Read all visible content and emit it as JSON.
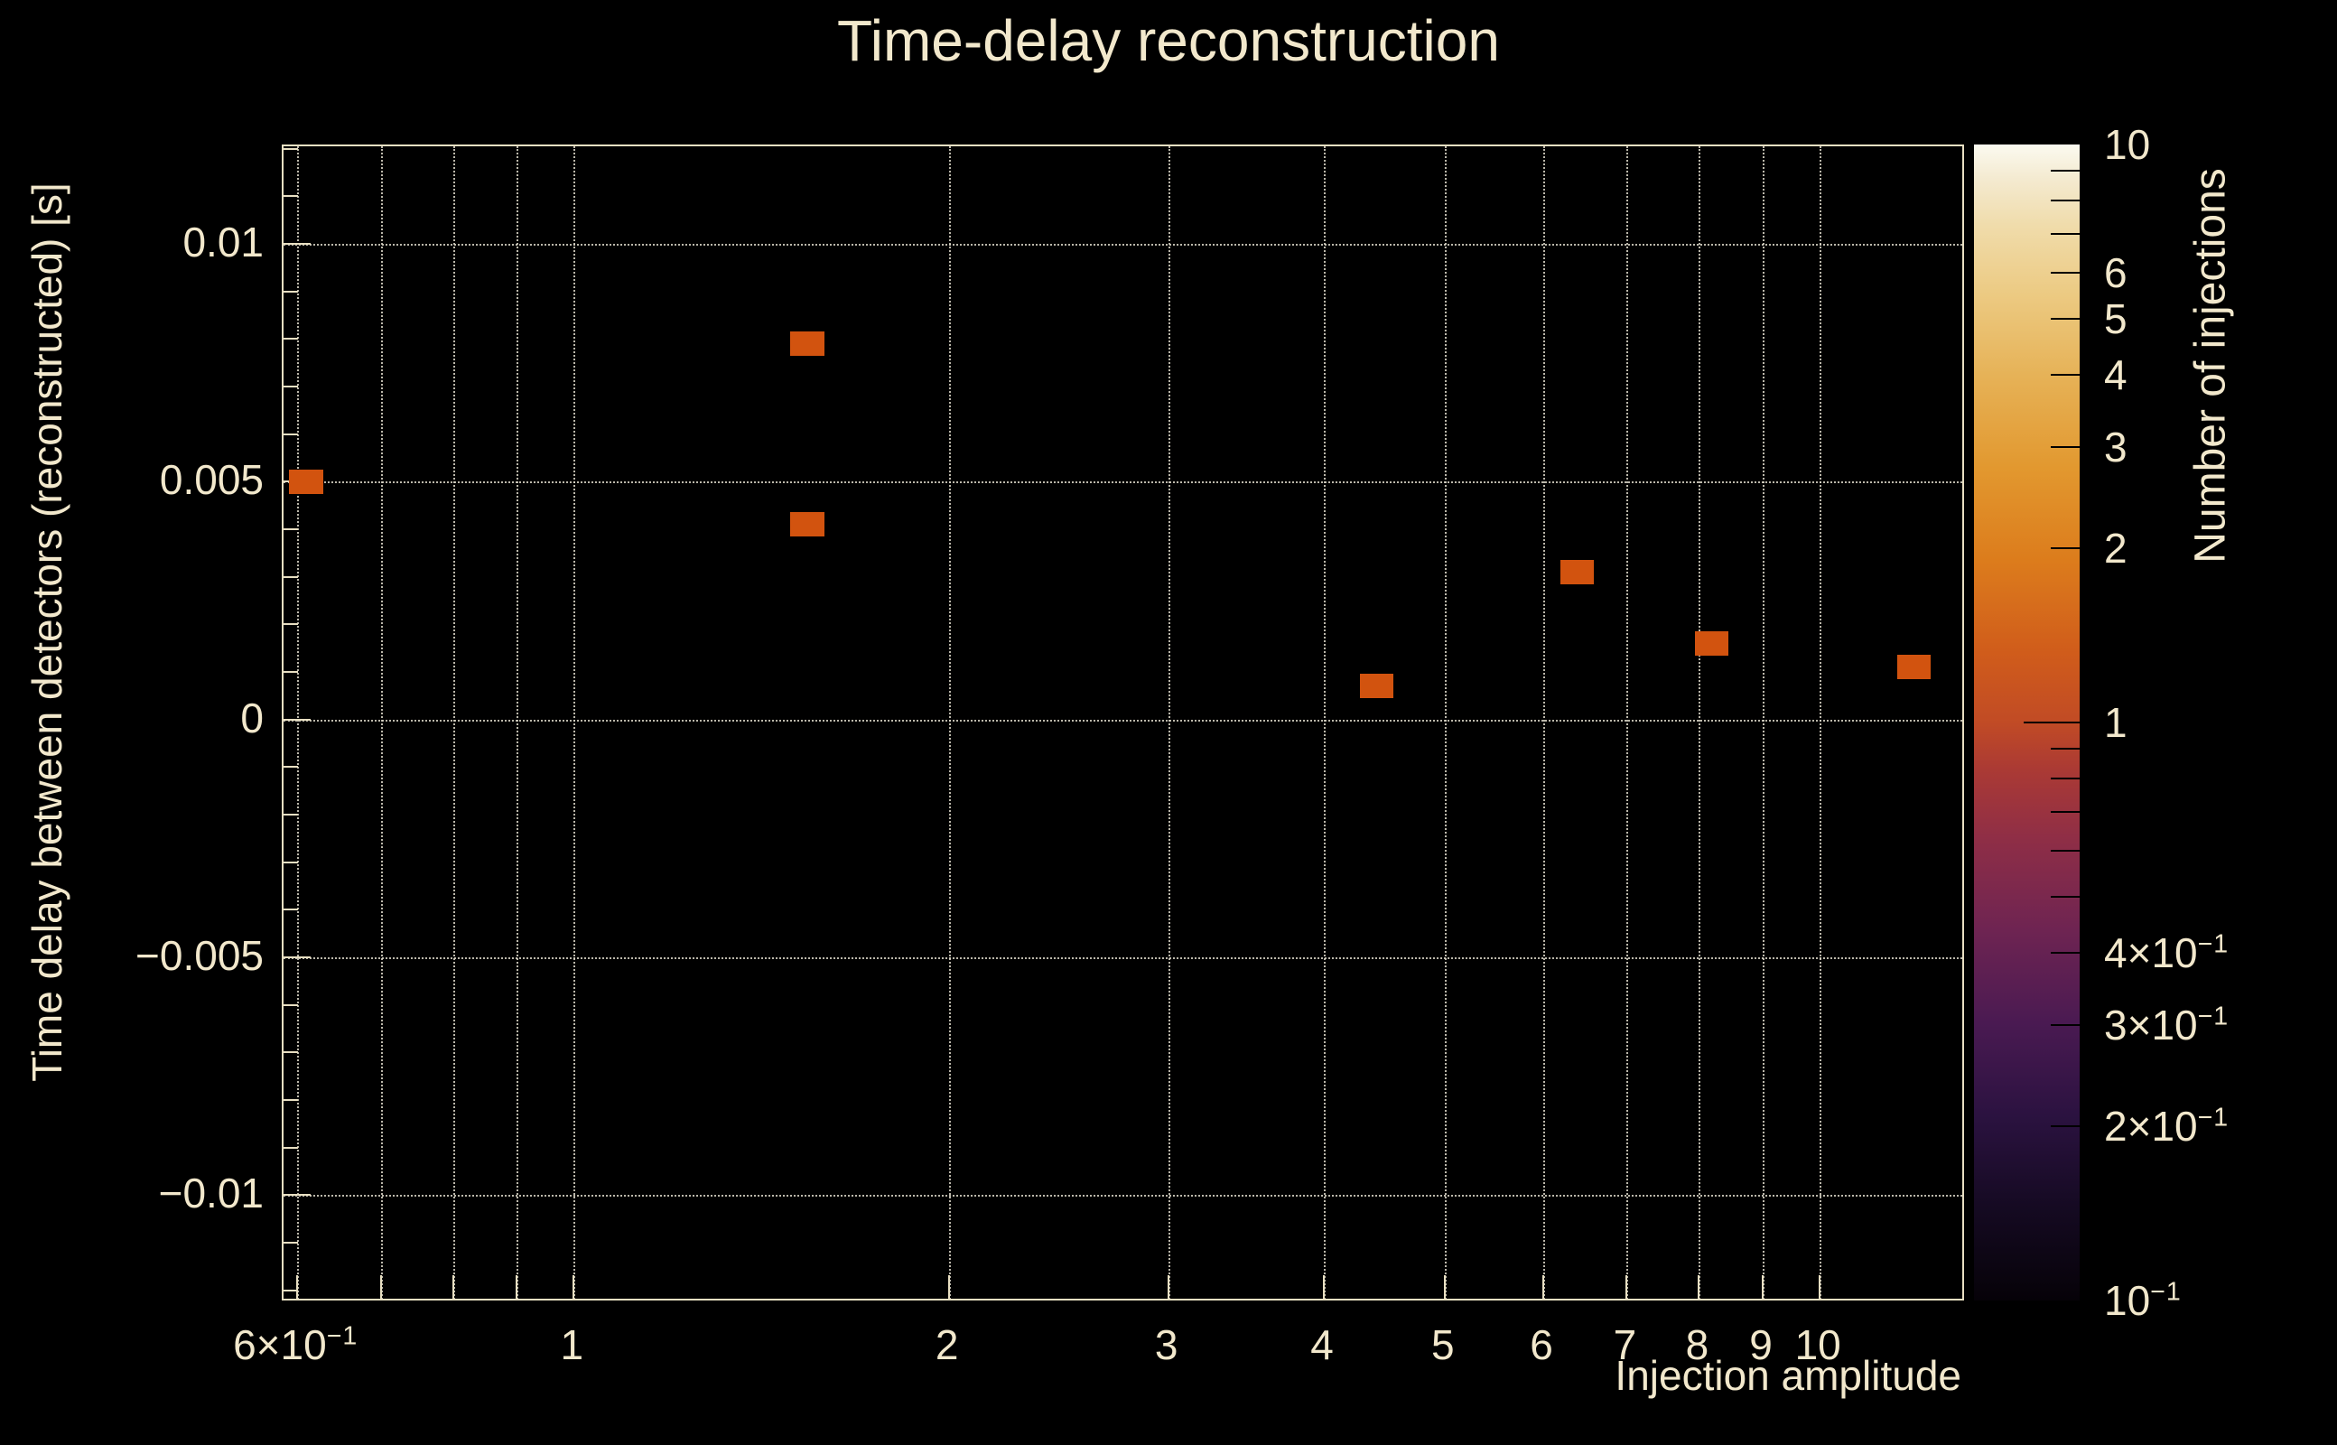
{
  "title": "Time-delay reconstruction",
  "colors": {
    "background": "#000000",
    "text": "#f2e8cc",
    "axis": "#e8dfc2",
    "grid": "#dcd7c8",
    "bin": "#d2530f"
  },
  "x_axis": {
    "title": "Injection amplitude",
    "scale": "log",
    "min": 0.585,
    "max": 13.1,
    "tick_values": [
      0.6,
      0.7,
      0.8,
      0.9,
      1,
      2,
      3,
      4,
      5,
      6,
      7,
      8,
      9,
      10
    ],
    "labels": [
      {
        "v": 0.6,
        "base": "6×10",
        "sup": "−1"
      },
      {
        "v": 1,
        "base": "1"
      },
      {
        "v": 2,
        "base": "2"
      },
      {
        "v": 3,
        "base": "3"
      },
      {
        "v": 4,
        "base": "4"
      },
      {
        "v": 5,
        "base": "5"
      },
      {
        "v": 6,
        "base": "6"
      },
      {
        "v": 7,
        "base": "7"
      },
      {
        "v": 8,
        "base": "8"
      },
      {
        "v": 9,
        "base": "9"
      },
      {
        "v": 10,
        "base": "10"
      }
    ]
  },
  "y_axis": {
    "title": "Time delay between detectors (reconstructed) [s]",
    "scale": "linear",
    "min": -0.01225,
    "max": 0.01205,
    "major_ticks": [
      0.01,
      0.005,
      0,
      -0.005,
      -0.01
    ],
    "labels": [
      {
        "v": 0.01,
        "base": "0.01"
      },
      {
        "v": 0.005,
        "base": "0.005"
      },
      {
        "v": 0,
        "base": "0"
      },
      {
        "v": -0.005,
        "base": "−0.005"
      },
      {
        "v": -0.01,
        "base": "−0.01"
      }
    ],
    "minor_step": 0.001
  },
  "colorbar": {
    "title": "Number of injections",
    "scale": "log",
    "min": 0.1,
    "max": 10,
    "labels": [
      {
        "v": 10,
        "base": "10"
      },
      {
        "v": 6,
        "base": "6"
      },
      {
        "v": 5,
        "base": "5"
      },
      {
        "v": 4,
        "base": "4"
      },
      {
        "v": 3,
        "base": "3"
      },
      {
        "v": 2,
        "base": "2"
      },
      {
        "v": 1,
        "base": "1"
      },
      {
        "v": 0.4,
        "base": "4×10",
        "sup": "−1"
      },
      {
        "v": 0.3,
        "base": "3×10",
        "sup": "−1"
      },
      {
        "v": 0.2,
        "base": "2×10",
        "sup": "−1"
      },
      {
        "v": 0.1,
        "base": "10",
        "sup": "−1"
      }
    ],
    "minor_tick_values": [
      9,
      8,
      7,
      6,
      5,
      4,
      3,
      2,
      0.9,
      0.8,
      0.7,
      0.6,
      0.5,
      0.4,
      0.3,
      0.2
    ],
    "major_tick_values": [
      1
    ],
    "gradient": [
      {
        "t": 0.0,
        "c": "#060208"
      },
      {
        "t": 0.08,
        "c": "#150a22"
      },
      {
        "t": 0.16,
        "c": "#2b1240"
      },
      {
        "t": 0.24,
        "c": "#4a1a52"
      },
      {
        "t": 0.32,
        "c": "#6e2452"
      },
      {
        "t": 0.4,
        "c": "#8f2e46"
      },
      {
        "t": 0.46,
        "c": "#ab3a34"
      },
      {
        "t": 0.5,
        "c": "#c14b25"
      },
      {
        "t": 0.56,
        "c": "#d05c1b"
      },
      {
        "t": 0.64,
        "c": "#dc7c1c"
      },
      {
        "t": 0.72,
        "c": "#e2982f"
      },
      {
        "t": 0.8,
        "c": "#e6b257"
      },
      {
        "t": 0.87,
        "c": "#ecca82"
      },
      {
        "t": 0.93,
        "c": "#f0dcab"
      },
      {
        "t": 0.97,
        "c": "#f4ead0"
      },
      {
        "t": 1.0,
        "c": "#fbfaf0"
      }
    ]
  },
  "chart_data": {
    "type": "heatmap",
    "title": "Time-delay reconstruction",
    "xlabel": "Injection amplitude",
    "ylabel": "Time delay between detectors (reconstructed) [s]",
    "xlim": [
      0.585,
      13.1
    ],
    "ylim": [
      -0.01225,
      0.01205
    ],
    "x_scale": "log",
    "grid": true,
    "bin_width_decades": 0.027,
    "bin_height_y": 0.00051,
    "points": [
      {
        "x": 0.61,
        "y": 0.005,
        "count": 1
      },
      {
        "x": 1.54,
        "y": 0.0079,
        "count": 1
      },
      {
        "x": 1.54,
        "y": 0.0041,
        "count": 1
      },
      {
        "x": 4.41,
        "y": 0.0007,
        "count": 1
      },
      {
        "x": 6.39,
        "y": 0.0031,
        "count": 1
      },
      {
        "x": 8.19,
        "y": 0.0016,
        "count": 1
      },
      {
        "x": 11.9,
        "y": 0.0011,
        "count": 1
      }
    ]
  }
}
